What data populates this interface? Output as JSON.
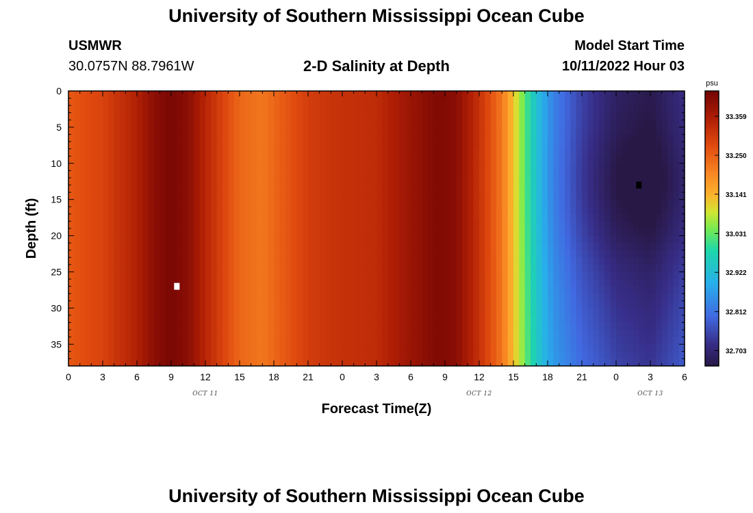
{
  "header": {
    "title": "University of Southern Mississippi Ocean Cube",
    "station": "USMWR",
    "coords": "30.0757N  88.7961W",
    "subtitle": "2-D Salinity at Depth",
    "model_start_label": "Model Start Time",
    "model_start_value": "10/11/2022 Hour 03"
  },
  "footer": {
    "title": "University of Southern Mississippi Ocean Cube"
  },
  "chart_data": {
    "type": "heatmap",
    "xlabel": "Forecast Time(Z)",
    "ylabel": "Depth (ft)",
    "x_hours_range": [
      0,
      54
    ],
    "x_ticks": [
      "0",
      "3",
      "6",
      "9",
      "12",
      "15",
      "18",
      "21",
      "0",
      "3",
      "6",
      "9",
      "12",
      "15",
      "18",
      "21",
      "0",
      "3",
      "6"
    ],
    "x_date_labels": [
      {
        "label": "OCT 11",
        "hour": 12
      },
      {
        "label": "OCT 12",
        "hour": 36
      },
      {
        "label": "OCT 13",
        "hour": 51
      }
    ],
    "y_ticks": [
      "0",
      "5",
      "10",
      "15",
      "20",
      "25",
      "30",
      "35"
    ],
    "ylim": [
      0,
      38
    ],
    "colorbar": {
      "unit": "psu",
      "ticks": [
        "33.359",
        "33.250",
        "33.141",
        "33.031",
        "32.922",
        "32.812",
        "32.703"
      ],
      "range": [
        32.66,
        33.43
      ]
    },
    "salinity_profile": {
      "hours": [
        0,
        3,
        6,
        7.5,
        9,
        10.5,
        12,
        15,
        17,
        21,
        24,
        27,
        30,
        32,
        33,
        34,
        36,
        38,
        39.5,
        40.5,
        41.5,
        42.5,
        45,
        48,
        51,
        54
      ],
      "values": [
        33.26,
        33.29,
        33.35,
        33.4,
        33.42,
        33.4,
        33.34,
        33.24,
        33.22,
        33.3,
        33.32,
        33.33,
        33.38,
        33.41,
        33.41,
        33.4,
        33.32,
        33.22,
        33.08,
        32.98,
        32.9,
        32.84,
        32.76,
        32.7,
        32.68,
        32.73
      ]
    },
    "markers": [
      {
        "hour": 9.5,
        "depth": 27,
        "color": "#ffffff"
      },
      {
        "hour": 50,
        "depth": 13,
        "color": "#000000"
      }
    ]
  }
}
